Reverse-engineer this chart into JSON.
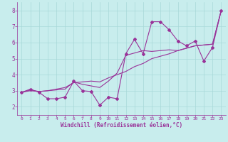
{
  "xlabel": "Windchill (Refroidissement éolien,°C)",
  "ylabel": "",
  "xlim": [
    -0.5,
    23.5
  ],
  "ylim": [
    1.5,
    8.5
  ],
  "xticks": [
    0,
    1,
    2,
    3,
    4,
    5,
    6,
    7,
    8,
    9,
    10,
    11,
    12,
    13,
    14,
    15,
    16,
    17,
    18,
    19,
    20,
    21,
    22,
    23
  ],
  "yticks": [
    2,
    3,
    4,
    5,
    6,
    7,
    8
  ],
  "bg_color": "#c8eded",
  "line_color": "#993399",
  "grid_color": "#a8d8d8",
  "series1": [
    [
      0,
      2.9
    ],
    [
      1,
      3.1
    ],
    [
      2,
      2.9
    ],
    [
      3,
      2.5
    ],
    [
      4,
      2.5
    ],
    [
      5,
      2.6
    ],
    [
      6,
      3.6
    ],
    [
      7,
      3.0
    ],
    [
      8,
      2.95
    ],
    [
      9,
      2.1
    ],
    [
      10,
      2.6
    ],
    [
      11,
      2.5
    ],
    [
      12,
      5.3
    ],
    [
      13,
      6.2
    ],
    [
      14,
      5.3
    ],
    [
      15,
      7.3
    ],
    [
      16,
      7.3
    ],
    [
      17,
      6.8
    ],
    [
      18,
      6.1
    ],
    [
      19,
      5.8
    ],
    [
      20,
      6.1
    ],
    [
      21,
      4.85
    ],
    [
      22,
      5.7
    ],
    [
      23,
      8.0
    ]
  ],
  "series2": [
    [
      0,
      2.9
    ],
    [
      1,
      3.05
    ],
    [
      2,
      2.95
    ],
    [
      3,
      3.0
    ],
    [
      4,
      3.05
    ],
    [
      5,
      3.1
    ],
    [
      6,
      3.55
    ],
    [
      7,
      3.4
    ],
    [
      8,
      3.3
    ],
    [
      9,
      3.2
    ],
    [
      10,
      3.6
    ],
    [
      11,
      4.1
    ],
    [
      12,
      5.2
    ],
    [
      13,
      5.35
    ],
    [
      14,
      5.5
    ],
    [
      15,
      5.45
    ],
    [
      16,
      5.5
    ],
    [
      17,
      5.55
    ],
    [
      18,
      5.5
    ],
    [
      19,
      5.65
    ],
    [
      20,
      5.8
    ],
    [
      21,
      5.85
    ],
    [
      22,
      5.9
    ],
    [
      23,
      8.0
    ]
  ],
  "series3": [
    [
      0,
      2.9
    ],
    [
      1,
      3.0
    ],
    [
      2,
      2.95
    ],
    [
      3,
      3.0
    ],
    [
      4,
      3.1
    ],
    [
      5,
      3.2
    ],
    [
      6,
      3.5
    ],
    [
      7,
      3.55
    ],
    [
      8,
      3.6
    ],
    [
      9,
      3.55
    ],
    [
      10,
      3.8
    ],
    [
      11,
      4.0
    ],
    [
      12,
      4.2
    ],
    [
      13,
      4.5
    ],
    [
      14,
      4.7
    ],
    [
      15,
      5.0
    ],
    [
      16,
      5.15
    ],
    [
      17,
      5.3
    ],
    [
      18,
      5.5
    ],
    [
      19,
      5.65
    ],
    [
      20,
      5.8
    ],
    [
      21,
      5.85
    ],
    [
      22,
      5.9
    ],
    [
      23,
      8.0
    ]
  ]
}
